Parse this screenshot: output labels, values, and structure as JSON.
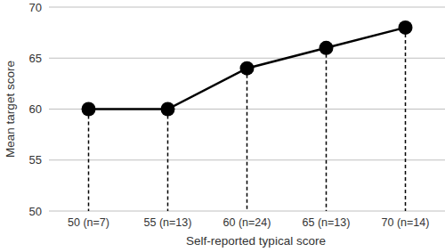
{
  "chart_data": {
    "type": "line",
    "x_label": "Self-reported typical score",
    "y_label": "Mean target score",
    "categories": [
      "50 (n=7)",
      "55 (n=13)",
      "60 (n=24)",
      "65 (n=13)",
      "70 (n=14)"
    ],
    "values": [
      60,
      60,
      64,
      66,
      68
    ],
    "color": "#000000",
    "marker": "circle",
    "ylim": [
      50,
      70
    ],
    "yticks": [
      50,
      55,
      60,
      65,
      70
    ],
    "grid": true
  }
}
